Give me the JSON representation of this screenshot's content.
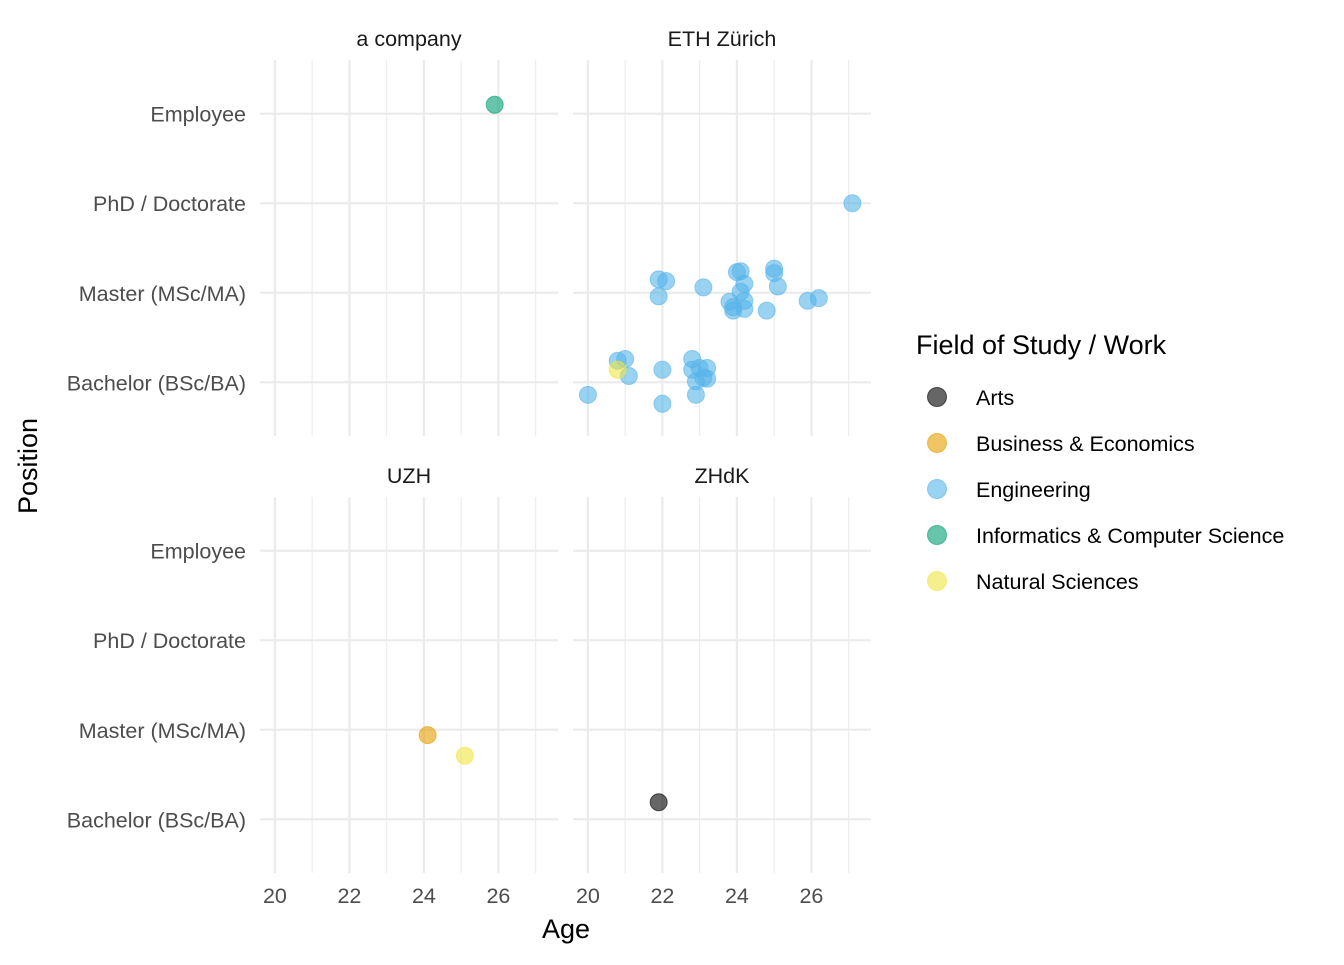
{
  "chart_data": {
    "type": "scatter",
    "facet_by": "institution",
    "panels": [
      {
        "title": "a company"
      },
      {
        "title": "ETH Zürich"
      },
      {
        "title": "UZH"
      },
      {
        "title": "ZHdK"
      }
    ],
    "x_axis": {
      "label": "Age",
      "range": [
        19.6,
        27.6
      ],
      "ticks": [
        20,
        22,
        24,
        26
      ],
      "tick_labels": [
        "20",
        "22",
        "24",
        "26"
      ],
      "minor_ticks": [
        21,
        23,
        25,
        27
      ]
    },
    "y_axis": {
      "label": "Position",
      "categories": [
        "Bachelor (BSc/BA)",
        "Master (MSc/MA)",
        "PhD / Doctorate",
        "Employee"
      ],
      "range": [
        0.4,
        4.6
      ]
    },
    "legend": {
      "title": "Field of Study / Work",
      "position": "right",
      "items": [
        {
          "label": "Arts",
          "color": "#000000"
        },
        {
          "label": "Business & Economics",
          "color": "#E69F00"
        },
        {
          "label": "Engineering",
          "color": "#56B4E9"
        },
        {
          "label": "Informatics & Computer Science",
          "color": "#009E73"
        },
        {
          "label": "Natural Sciences",
          "color": "#F0E442"
        }
      ]
    },
    "grid": true,
    "point_opacity": 0.6,
    "series": [
      {
        "name": "Arts",
        "color": "#000000",
        "points": [
          {
            "panel": 3,
            "x": 21.9,
            "y": 1.19
          }
        ]
      },
      {
        "name": "Business & Economics",
        "color": "#E69F00",
        "points": [
          {
            "panel": 2,
            "x": 24.1,
            "y": 1.94
          }
        ]
      },
      {
        "name": "Engineering",
        "color": "#56B4E9",
        "points": [
          {
            "panel": 1,
            "x": 27.1,
            "y": 3.0
          },
          {
            "panel": 1,
            "x": 21.9,
            "y": 2.15
          },
          {
            "panel": 1,
            "x": 22.1,
            "y": 2.13
          },
          {
            "panel": 1,
            "x": 21.9,
            "y": 1.96
          },
          {
            "panel": 1,
            "x": 23.1,
            "y": 2.06
          },
          {
            "panel": 1,
            "x": 24.0,
            "y": 2.23
          },
          {
            "panel": 1,
            "x": 24.1,
            "y": 2.24
          },
          {
            "panel": 1,
            "x": 24.2,
            "y": 2.1
          },
          {
            "panel": 1,
            "x": 24.1,
            "y": 2.01
          },
          {
            "panel": 1,
            "x": 24.2,
            "y": 1.91
          },
          {
            "panel": 1,
            "x": 23.8,
            "y": 1.9
          },
          {
            "panel": 1,
            "x": 23.9,
            "y": 1.84
          },
          {
            "panel": 1,
            "x": 23.9,
            "y": 1.8
          },
          {
            "panel": 1,
            "x": 24.2,
            "y": 1.82
          },
          {
            "panel": 1,
            "x": 25.0,
            "y": 2.27
          },
          {
            "panel": 1,
            "x": 25.0,
            "y": 2.22
          },
          {
            "panel": 1,
            "x": 25.1,
            "y": 2.07
          },
          {
            "panel": 1,
            "x": 24.8,
            "y": 1.8
          },
          {
            "panel": 1,
            "x": 25.9,
            "y": 1.91
          },
          {
            "panel": 1,
            "x": 26.2,
            "y": 1.94
          },
          {
            "panel": 1,
            "x": 20.8,
            "y": 1.24
          },
          {
            "panel": 1,
            "x": 21.0,
            "y": 1.26
          },
          {
            "panel": 1,
            "x": 21.1,
            "y": 1.07
          },
          {
            "panel": 1,
            "x": 20.0,
            "y": 0.86
          },
          {
            "panel": 1,
            "x": 22.0,
            "y": 1.14
          },
          {
            "panel": 1,
            "x": 22.0,
            "y": 0.76
          },
          {
            "panel": 1,
            "x": 22.8,
            "y": 1.26
          },
          {
            "panel": 1,
            "x": 22.8,
            "y": 1.14
          },
          {
            "panel": 1,
            "x": 23.0,
            "y": 1.16
          },
          {
            "panel": 1,
            "x": 23.2,
            "y": 1.16
          },
          {
            "panel": 1,
            "x": 22.9,
            "y": 1.01
          },
          {
            "panel": 1,
            "x": 23.1,
            "y": 1.05
          },
          {
            "panel": 1,
            "x": 23.2,
            "y": 1.04
          },
          {
            "panel": 1,
            "x": 22.9,
            "y": 0.86
          }
        ]
      },
      {
        "name": "Informatics & Computer Science",
        "color": "#009E73",
        "points": [
          {
            "panel": 0,
            "x": 25.9,
            "y": 4.1
          }
        ]
      },
      {
        "name": "Natural Sciences",
        "color": "#F0E442",
        "points": [
          {
            "panel": 1,
            "x": 20.8,
            "y": 1.14
          },
          {
            "panel": 2,
            "x": 25.1,
            "y": 1.71
          }
        ]
      }
    ]
  }
}
